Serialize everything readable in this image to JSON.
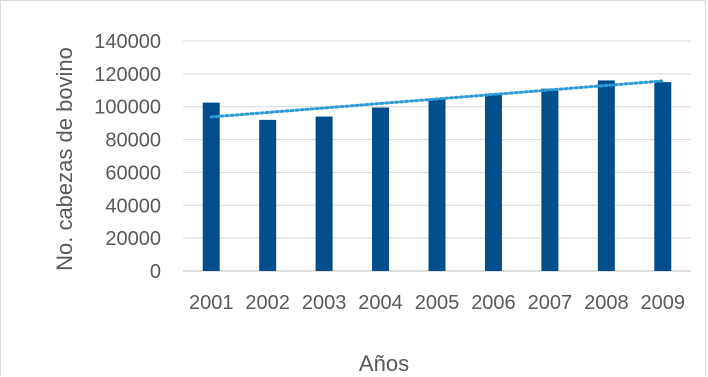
{
  "chart_data": {
    "type": "bar",
    "categories": [
      "2001",
      "2002",
      "2003",
      "2004",
      "2005",
      "2006",
      "2007",
      "2008",
      "2009"
    ],
    "values": [
      102500,
      92000,
      94000,
      99500,
      104500,
      108000,
      111000,
      116000,
      115000
    ],
    "trendline": {
      "type": "linear",
      "style": "dotted"
    },
    "xlabel": "Años",
    "ylabel": "No. cabezas de bovino",
    "ylim": [
      0,
      140000
    ],
    "yticks": [
      0,
      20000,
      40000,
      60000,
      80000,
      100000,
      120000,
      140000
    ],
    "grid": true,
    "legend": "none",
    "colors": {
      "bar": "#004f8c",
      "trend": "#2e9bd6",
      "grid": "#d9d9d9",
      "text": "#595959"
    }
  }
}
